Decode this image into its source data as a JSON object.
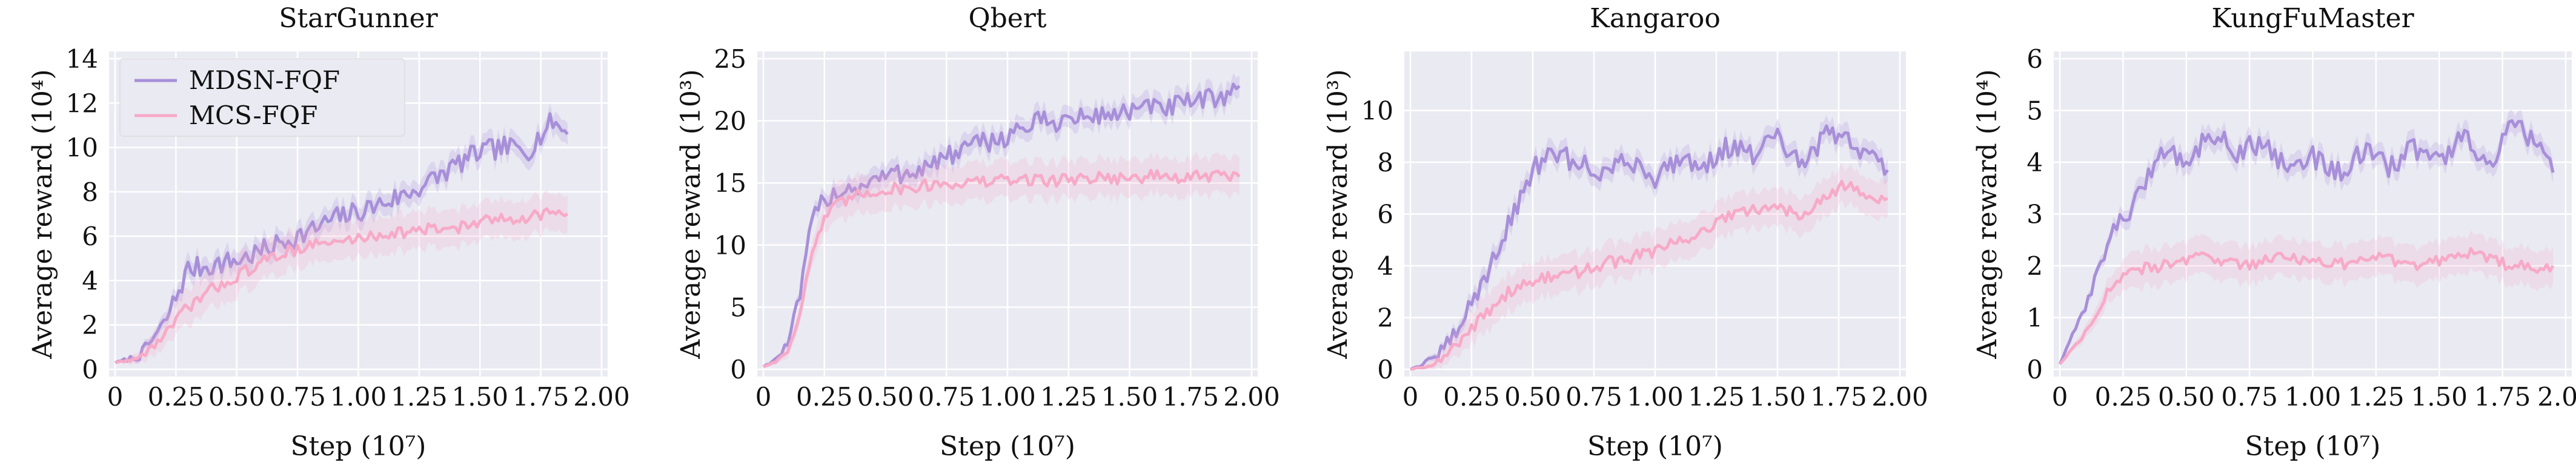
{
  "colors": {
    "plot_bg": "#eaeaf2",
    "grid": "#ffffff",
    "mdsn": "#a78fd9",
    "mcs": "#f7aac7"
  },
  "legend": {
    "placement": "top-left",
    "entries": [
      "MDSN-FQF",
      "MCS-FQF"
    ]
  },
  "chart_data": [
    {
      "type": "line",
      "title": "StarGunner",
      "xlabel": "Step (10⁷)",
      "ylabel": "Average reward (10⁴)",
      "xlim": [
        0,
        2.0
      ],
      "ylim": [
        0,
        14
      ],
      "xticks": [
        0,
        0.25,
        0.5,
        0.75,
        1.0,
        1.25,
        1.5,
        1.75,
        2.0
      ],
      "xtick_labels": [
        "0",
        "0.25",
        "0.50",
        "0.75",
        "1.00",
        "1.25",
        "1.50",
        "1.75",
        "2.00"
      ],
      "yticks": [
        0,
        2,
        4,
        6,
        8,
        10,
        12,
        14
      ],
      "grid": true,
      "series": [
        {
          "name": "MDSN-FQF",
          "color": "#a78fd9",
          "x": [
            0,
            0.1,
            0.2,
            0.3,
            0.4,
            0.5,
            0.6,
            0.7,
            0.8,
            0.9,
            1.0,
            1.1,
            1.2,
            1.3,
            1.4,
            1.5,
            1.6,
            1.7,
            1.8,
            1.86
          ],
          "y": [
            0.3,
            0.6,
            2.0,
            4.5,
            4.7,
            4.9,
            5.3,
            5.8,
            6.2,
            6.8,
            7.1,
            7.5,
            7.9,
            8.5,
            9.2,
            9.8,
            10.0,
            9.9,
            11.2,
            10.6
          ]
        },
        {
          "name": "MCS-FQF",
          "color": "#f7aac7",
          "x": [
            0,
            0.1,
            0.2,
            0.3,
            0.4,
            0.5,
            0.6,
            0.7,
            0.8,
            0.9,
            1.0,
            1.1,
            1.2,
            1.3,
            1.4,
            1.5,
            1.6,
            1.7,
            1.8,
            1.86
          ],
          "y": [
            0.3,
            0.5,
            1.5,
            2.8,
            3.6,
            4.2,
            4.8,
            5.3,
            5.6,
            5.7,
            5.9,
            6.1,
            6.2,
            6.3,
            6.4,
            6.6,
            6.8,
            6.9,
            7.1,
            7.0
          ]
        }
      ]
    },
    {
      "type": "line",
      "title": "Qbert",
      "xlabel": "Step (10⁷)",
      "ylabel": "Average reward (10³)",
      "xlim": [
        0,
        2.0
      ],
      "ylim": [
        0,
        25
      ],
      "xticks": [
        0,
        0.25,
        0.5,
        0.75,
        1.0,
        1.25,
        1.5,
        1.75,
        2.0
      ],
      "xtick_labels": [
        "0",
        "0.25",
        "0.50",
        "0.75",
        "1.00",
        "1.25",
        "1.50",
        "1.75",
        "2.00"
      ],
      "yticks": [
        0,
        5,
        10,
        15,
        20,
        25
      ],
      "grid": true,
      "series": [
        {
          "name": "MDSN-FQF",
          "color": "#a78fd9",
          "x": [
            0,
            0.05,
            0.1,
            0.15,
            0.2,
            0.25,
            0.3,
            0.4,
            0.5,
            0.6,
            0.7,
            0.8,
            0.9,
            1.0,
            1.1,
            1.2,
            1.3,
            1.4,
            1.5,
            1.6,
            1.7,
            1.8,
            1.9,
            1.95
          ],
          "y": [
            0.2,
            0.8,
            2.0,
            6.0,
            12.0,
            13.8,
            14.3,
            14.8,
            15.5,
            15.9,
            16.6,
            17.5,
            18.2,
            18.8,
            19.8,
            20.0,
            20.2,
            20.5,
            20.8,
            21.0,
            21.2,
            21.6,
            22.2,
            22.8
          ]
        },
        {
          "name": "MCS-FQF",
          "color": "#f7aac7",
          "x": [
            0,
            0.05,
            0.1,
            0.15,
            0.2,
            0.25,
            0.3,
            0.4,
            0.5,
            0.6,
            0.7,
            0.8,
            0.9,
            1.0,
            1.1,
            1.2,
            1.3,
            1.4,
            1.5,
            1.6,
            1.7,
            1.8,
            1.9,
            1.95
          ],
          "y": [
            0.2,
            0.6,
            1.5,
            4.5,
            9.5,
            12.0,
            13.2,
            14.1,
            14.5,
            14.6,
            14.9,
            15.0,
            15.1,
            15.2,
            15.3,
            15.2,
            15.4,
            15.5,
            15.3,
            15.6,
            15.4,
            15.5,
            15.6,
            15.5
          ]
        }
      ]
    },
    {
      "type": "line",
      "title": "Kangaroo",
      "xlabel": "Step (10⁷)",
      "ylabel": "Average reward (10³)",
      "xlim": [
        0,
        2.0
      ],
      "ylim": [
        0,
        12
      ],
      "xticks": [
        0,
        0.25,
        0.5,
        0.75,
        1.0,
        1.25,
        1.5,
        1.75,
        2.0
      ],
      "xtick_labels": [
        "0",
        "0.25",
        "0.50",
        "0.75",
        "1.00",
        "1.25",
        "1.50",
        "1.75",
        "2.00"
      ],
      "yticks": [
        0,
        2,
        4,
        6,
        8,
        10
      ],
      "grid": true,
      "series": [
        {
          "name": "MDSN-FQF",
          "color": "#a78fd9",
          "x": [
            0,
            0.1,
            0.2,
            0.3,
            0.4,
            0.5,
            0.6,
            0.7,
            0.8,
            0.9,
            1.0,
            1.1,
            1.2,
            1.3,
            1.4,
            1.5,
            1.6,
            1.7,
            1.8,
            1.9,
            1.95
          ],
          "y": [
            0,
            0.4,
            1.6,
            3.5,
            5.5,
            7.8,
            8.3,
            7.9,
            7.6,
            8.1,
            7.4,
            8.2,
            7.9,
            8.6,
            8.3,
            8.9,
            7.8,
            9.1,
            8.8,
            8.1,
            7.7
          ]
        },
        {
          "name": "MCS-FQF",
          "color": "#f7aac7",
          "x": [
            0,
            0.1,
            0.2,
            0.3,
            0.4,
            0.5,
            0.6,
            0.7,
            0.8,
            0.9,
            1.0,
            1.1,
            1.2,
            1.3,
            1.4,
            1.5,
            1.6,
            1.7,
            1.8,
            1.9,
            1.95
          ],
          "y": [
            0,
            0.2,
            1.0,
            2.1,
            3.0,
            3.4,
            3.6,
            3.8,
            4.1,
            4.3,
            4.6,
            4.9,
            5.4,
            5.9,
            6.1,
            6.3,
            6.0,
            6.8,
            7.2,
            6.5,
            6.6
          ]
        }
      ]
    },
    {
      "type": "line",
      "title": "KungFuMaster",
      "xlabel": "Step (10⁷)",
      "ylabel": "Average reward (10⁴)",
      "xlim": [
        0,
        2.0
      ],
      "ylim": [
        0,
        6
      ],
      "xticks": [
        0,
        0.25,
        0.5,
        0.75,
        1.0,
        1.25,
        1.5,
        1.75,
        2.0
      ],
      "xtick_labels": [
        "0",
        "0.25",
        "0.50",
        "0.75",
        "1.00",
        "1.25",
        "1.50",
        "1.75",
        "2.00"
      ],
      "yticks": [
        0,
        1,
        2,
        3,
        4,
        5,
        6
      ],
      "grid": true,
      "series": [
        {
          "name": "MDSN-FQF",
          "color": "#a78fd9",
          "x": [
            0,
            0.1,
            0.2,
            0.3,
            0.4,
            0.5,
            0.6,
            0.7,
            0.8,
            0.9,
            1.0,
            1.1,
            1.2,
            1.3,
            1.4,
            1.5,
            1.6,
            1.7,
            1.8,
            1.9,
            1.95
          ],
          "y": [
            0.1,
            1.2,
            2.6,
            3.2,
            4.3,
            4.0,
            4.6,
            4.2,
            4.4,
            3.9,
            4.1,
            3.8,
            4.2,
            3.9,
            4.3,
            4.0,
            4.5,
            3.9,
            4.8,
            4.2,
            3.8
          ]
        },
        {
          "name": "MCS-FQF",
          "color": "#f7aac7",
          "x": [
            0,
            0.1,
            0.2,
            0.3,
            0.4,
            0.5,
            0.6,
            0.7,
            0.8,
            0.9,
            1.0,
            1.1,
            1.2,
            1.3,
            1.4,
            1.5,
            1.6,
            1.7,
            1.8,
            1.9,
            1.95
          ],
          "y": [
            0.1,
            0.7,
            1.6,
            1.9,
            2.0,
            2.1,
            2.2,
            2.0,
            2.1,
            2.2,
            2.1,
            2.0,
            2.2,
            2.1,
            2.0,
            2.1,
            2.3,
            2.1,
            2.0,
            1.9,
            2.0
          ]
        }
      ]
    }
  ]
}
